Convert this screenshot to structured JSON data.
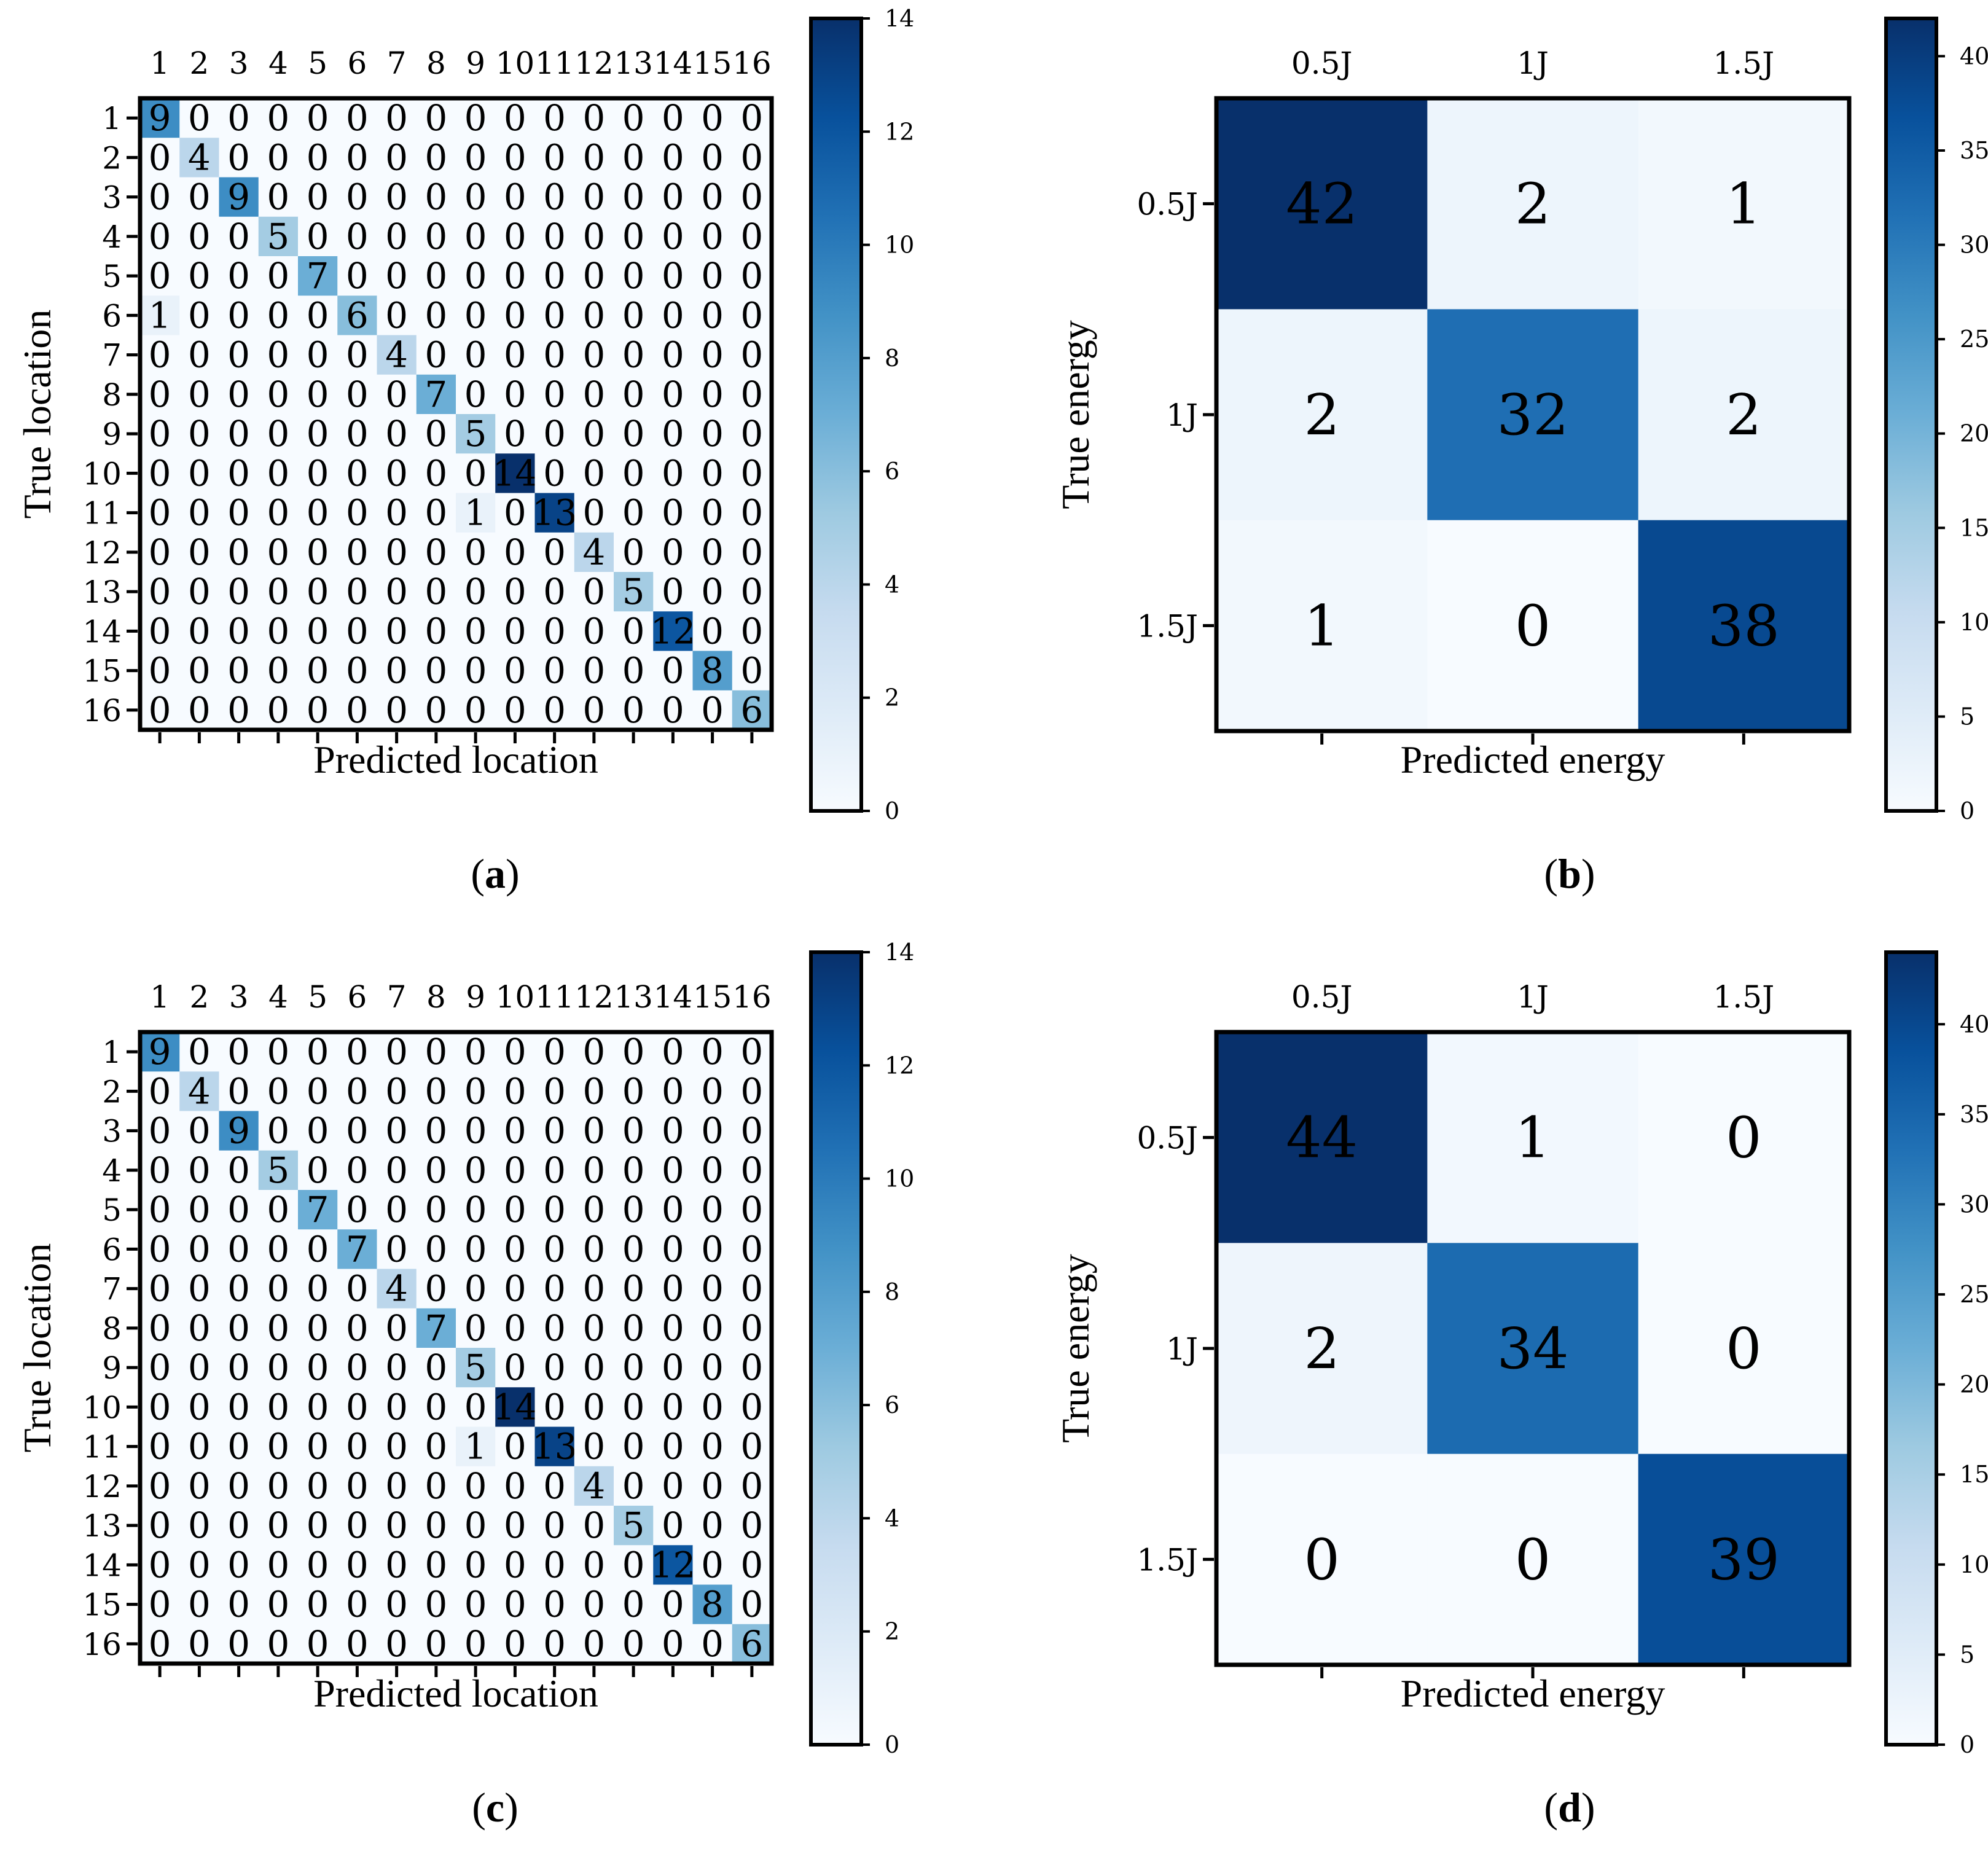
{
  "chart_data": [
    {
      "id": "a",
      "type": "heatmap",
      "title": "",
      "panel_label": [
        "(",
        "a",
        ")"
      ],
      "xlabel": "Predicted location",
      "ylabel": "True location",
      "x_ticks": [
        "1",
        "2",
        "3",
        "4",
        "5",
        "6",
        "7",
        "8",
        "9",
        "10",
        "11",
        "12",
        "13",
        "14",
        "15",
        "16"
      ],
      "y_ticks": [
        "1",
        "2",
        "3",
        "4",
        "5",
        "6",
        "7",
        "8",
        "9",
        "10",
        "11",
        "12",
        "13",
        "14",
        "15",
        "16"
      ],
      "colorbar": {
        "min": 0,
        "max": 14,
        "ticks": [
          "0",
          "2",
          "4",
          "6",
          "8",
          "10",
          "12",
          "14"
        ]
      },
      "matrix": [
        [
          9,
          0,
          0,
          0,
          0,
          0,
          0,
          0,
          0,
          0,
          0,
          0,
          0,
          0,
          0,
          0
        ],
        [
          0,
          4,
          0,
          0,
          0,
          0,
          0,
          0,
          0,
          0,
          0,
          0,
          0,
          0,
          0,
          0
        ],
        [
          0,
          0,
          9,
          0,
          0,
          0,
          0,
          0,
          0,
          0,
          0,
          0,
          0,
          0,
          0,
          0
        ],
        [
          0,
          0,
          0,
          5,
          0,
          0,
          0,
          0,
          0,
          0,
          0,
          0,
          0,
          0,
          0,
          0
        ],
        [
          0,
          0,
          0,
          0,
          7,
          0,
          0,
          0,
          0,
          0,
          0,
          0,
          0,
          0,
          0,
          0
        ],
        [
          1,
          0,
          0,
          0,
          0,
          6,
          0,
          0,
          0,
          0,
          0,
          0,
          0,
          0,
          0,
          0
        ],
        [
          0,
          0,
          0,
          0,
          0,
          0,
          4,
          0,
          0,
          0,
          0,
          0,
          0,
          0,
          0,
          0
        ],
        [
          0,
          0,
          0,
          0,
          0,
          0,
          0,
          7,
          0,
          0,
          0,
          0,
          0,
          0,
          0,
          0
        ],
        [
          0,
          0,
          0,
          0,
          0,
          0,
          0,
          0,
          5,
          0,
          0,
          0,
          0,
          0,
          0,
          0
        ],
        [
          0,
          0,
          0,
          0,
          0,
          0,
          0,
          0,
          0,
          14,
          0,
          0,
          0,
          0,
          0,
          0
        ],
        [
          0,
          0,
          0,
          0,
          0,
          0,
          0,
          0,
          1,
          0,
          13,
          0,
          0,
          0,
          0,
          0
        ],
        [
          0,
          0,
          0,
          0,
          0,
          0,
          0,
          0,
          0,
          0,
          0,
          4,
          0,
          0,
          0,
          0
        ],
        [
          0,
          0,
          0,
          0,
          0,
          0,
          0,
          0,
          0,
          0,
          0,
          0,
          5,
          0,
          0,
          0
        ],
        [
          0,
          0,
          0,
          0,
          0,
          0,
          0,
          0,
          0,
          0,
          0,
          0,
          0,
          12,
          0,
          0
        ],
        [
          0,
          0,
          0,
          0,
          0,
          0,
          0,
          0,
          0,
          0,
          0,
          0,
          0,
          0,
          8,
          0
        ],
        [
          0,
          0,
          0,
          0,
          0,
          0,
          0,
          0,
          0,
          0,
          0,
          0,
          0,
          0,
          0,
          6
        ]
      ]
    },
    {
      "id": "b",
      "type": "heatmap",
      "title": "",
      "panel_label": [
        "(",
        "b",
        ")"
      ],
      "xlabel": "Predicted energy",
      "ylabel": "True energy",
      "x_ticks": [
        "0.5J",
        "1J",
        "1.5J"
      ],
      "y_ticks": [
        "0.5J",
        "1J",
        "1.5J"
      ],
      "colorbar": {
        "min": 0,
        "max": 42,
        "ticks": [
          "0",
          "5",
          "10",
          "15",
          "20",
          "25",
          "30",
          "35",
          "40"
        ]
      },
      "matrix": [
        [
          42,
          2,
          1
        ],
        [
          2,
          32,
          2
        ],
        [
          1,
          0,
          38
        ]
      ]
    },
    {
      "id": "c",
      "type": "heatmap",
      "title": "",
      "panel_label": [
        "(",
        "c",
        ")"
      ],
      "xlabel": "Predicted location",
      "ylabel": "True location",
      "x_ticks": [
        "1",
        "2",
        "3",
        "4",
        "5",
        "6",
        "7",
        "8",
        "9",
        "10",
        "11",
        "12",
        "13",
        "14",
        "15",
        "16"
      ],
      "y_ticks": [
        "1",
        "2",
        "3",
        "4",
        "5",
        "6",
        "7",
        "8",
        "9",
        "10",
        "11",
        "12",
        "13",
        "14",
        "15",
        "16"
      ],
      "colorbar": {
        "min": 0,
        "max": 14,
        "ticks": [
          "0",
          "2",
          "4",
          "6",
          "8",
          "10",
          "12",
          "14"
        ]
      },
      "matrix": [
        [
          9,
          0,
          0,
          0,
          0,
          0,
          0,
          0,
          0,
          0,
          0,
          0,
          0,
          0,
          0,
          0
        ],
        [
          0,
          4,
          0,
          0,
          0,
          0,
          0,
          0,
          0,
          0,
          0,
          0,
          0,
          0,
          0,
          0
        ],
        [
          0,
          0,
          9,
          0,
          0,
          0,
          0,
          0,
          0,
          0,
          0,
          0,
          0,
          0,
          0,
          0
        ],
        [
          0,
          0,
          0,
          5,
          0,
          0,
          0,
          0,
          0,
          0,
          0,
          0,
          0,
          0,
          0,
          0
        ],
        [
          0,
          0,
          0,
          0,
          7,
          0,
          0,
          0,
          0,
          0,
          0,
          0,
          0,
          0,
          0,
          0
        ],
        [
          0,
          0,
          0,
          0,
          0,
          7,
          0,
          0,
          0,
          0,
          0,
          0,
          0,
          0,
          0,
          0
        ],
        [
          0,
          0,
          0,
          0,
          0,
          0,
          4,
          0,
          0,
          0,
          0,
          0,
          0,
          0,
          0,
          0
        ],
        [
          0,
          0,
          0,
          0,
          0,
          0,
          0,
          7,
          0,
          0,
          0,
          0,
          0,
          0,
          0,
          0
        ],
        [
          0,
          0,
          0,
          0,
          0,
          0,
          0,
          0,
          5,
          0,
          0,
          0,
          0,
          0,
          0,
          0
        ],
        [
          0,
          0,
          0,
          0,
          0,
          0,
          0,
          0,
          0,
          14,
          0,
          0,
          0,
          0,
          0,
          0
        ],
        [
          0,
          0,
          0,
          0,
          0,
          0,
          0,
          0,
          1,
          0,
          13,
          0,
          0,
          0,
          0,
          0
        ],
        [
          0,
          0,
          0,
          0,
          0,
          0,
          0,
          0,
          0,
          0,
          0,
          4,
          0,
          0,
          0,
          0
        ],
        [
          0,
          0,
          0,
          0,
          0,
          0,
          0,
          0,
          0,
          0,
          0,
          0,
          5,
          0,
          0,
          0
        ],
        [
          0,
          0,
          0,
          0,
          0,
          0,
          0,
          0,
          0,
          0,
          0,
          0,
          0,
          12,
          0,
          0
        ],
        [
          0,
          0,
          0,
          0,
          0,
          0,
          0,
          0,
          0,
          0,
          0,
          0,
          0,
          0,
          8,
          0
        ],
        [
          0,
          0,
          0,
          0,
          0,
          0,
          0,
          0,
          0,
          0,
          0,
          0,
          0,
          0,
          0,
          6
        ]
      ]
    },
    {
      "id": "d",
      "type": "heatmap",
      "title": "",
      "panel_label": [
        "(",
        "d",
        ")"
      ],
      "xlabel": "Predicted energy",
      "ylabel": "True energy",
      "x_ticks": [
        "0.5J",
        "1J",
        "1.5J"
      ],
      "y_ticks": [
        "0.5J",
        "1J",
        "1.5J"
      ],
      "colorbar": {
        "min": 0,
        "max": 44,
        "ticks": [
          "0",
          "5",
          "10",
          "15",
          "20",
          "25",
          "30",
          "35",
          "40"
        ]
      },
      "matrix": [
        [
          44,
          1,
          0
        ],
        [
          2,
          34,
          0
        ],
        [
          0,
          0,
          39
        ]
      ]
    }
  ]
}
